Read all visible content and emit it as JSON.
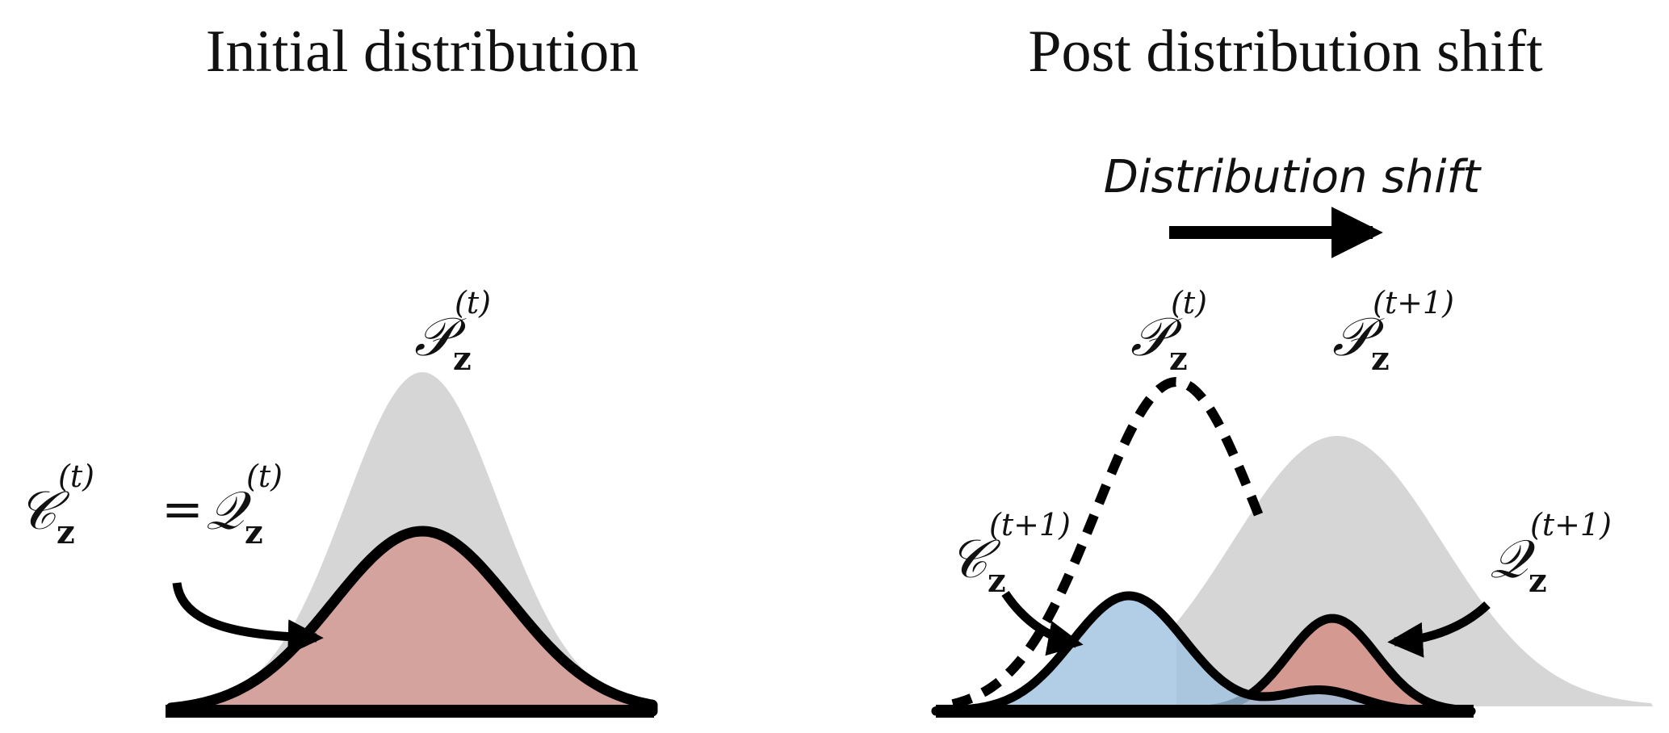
{
  "panels": [
    {
      "title": "Initial distribution",
      "labels": [
        {
          "symbol": "𝒫",
          "sub": "z",
          "sup": "(t)"
        },
        {
          "symbol": "𝒞",
          "sub": "z",
          "sup": "(t)"
        },
        {
          "symbol": "𝒬",
          "sub": "z",
          "sup": "(t)"
        }
      ],
      "equals": "="
    },
    {
      "title": "Post distribution shift",
      "shift_label": "Distribution shift",
      "labels": [
        {
          "symbol": "𝒫",
          "sub": "z",
          "sup": "(t)"
        },
        {
          "symbol": "𝒫",
          "sub": "z",
          "sup": "(t+1)"
        },
        {
          "symbol": "𝒞",
          "sub": "z",
          "sup": "(t+1)"
        },
        {
          "symbol": "𝒬",
          "sub": "z",
          "sup": "(t+1)"
        }
      ]
    }
  ]
}
